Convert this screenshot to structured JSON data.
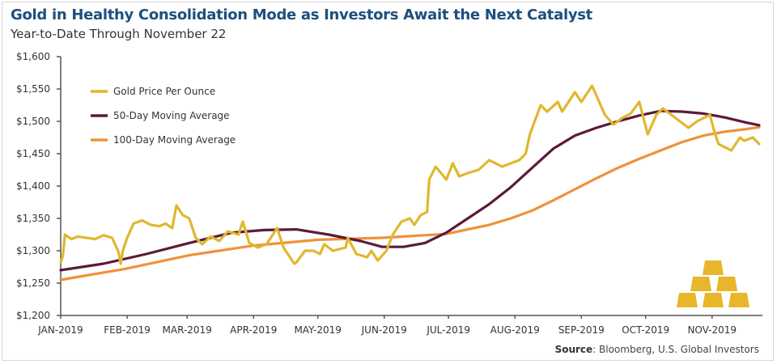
{
  "chart_data": {
    "type": "line",
    "title": "Gold in Healthy Consolidation Mode as Investors Await the Next Catalyst",
    "subtitle": "Year-to-Date Through November 22",
    "xlabel": "",
    "ylabel": "",
    "ylim": [
      1200,
      1600
    ],
    "yticks": [
      1200,
      1250,
      1300,
      1350,
      1400,
      1450,
      1500,
      1550,
      1600
    ],
    "ytick_labels": [
      "$1,200",
      "$1,250",
      "$1,300",
      "$1,350",
      "$1,400",
      "$1,450",
      "$1,500",
      "$1,550",
      "$1,600"
    ],
    "xlim_days": [
      0,
      326
    ],
    "xticks_days": [
      0,
      31,
      59,
      90,
      120,
      151,
      181,
      212,
      243,
      273,
      304
    ],
    "xtick_labels": [
      "JAN-2019",
      "FEB-2019",
      "MAR-2019",
      "APR-2019",
      "MAY-2019",
      "JUN-2019",
      "JUL-2019",
      "AUG-2019",
      "SEP-2019",
      "OCT-2019",
      "NOV-2019"
    ],
    "grid": false,
    "legend_position": "top-left",
    "series": [
      {
        "name": "Gold Price Per Ounce",
        "color": "#e0b72e",
        "x_days": [
          0,
          1,
          2,
          5,
          8,
          12,
          16,
          20,
          24,
          27,
          28,
          29,
          31,
          34,
          38,
          42,
          46,
          49,
          52,
          54,
          57,
          60,
          63,
          66,
          70,
          74,
          78,
          83,
          85,
          88,
          92,
          96,
          99,
          101,
          104,
          109,
          110,
          114,
          118,
          121,
          123,
          127,
          133,
          134,
          138,
          143,
          145,
          148,
          152,
          155,
          159,
          163,
          165,
          168,
          171,
          172,
          175,
          180,
          183,
          186,
          190,
          195,
          200,
          206,
          210,
          214,
          217,
          219,
          224,
          227,
          232,
          234,
          240,
          243,
          248,
          254,
          258,
          262,
          266,
          270,
          274,
          278,
          281,
          289,
          293,
          297,
          303,
          305,
          307,
          313,
          317,
          319,
          323,
          326
        ],
        "values": [
          1282,
          1292,
          1325,
          1318,
          1322,
          1320,
          1318,
          1324,
          1320,
          1298,
          1280,
          1300,
          1320,
          1342,
          1347,
          1340,
          1338,
          1342,
          1335,
          1370,
          1355,
          1350,
          1320,
          1310,
          1322,
          1315,
          1330,
          1325,
          1345,
          1312,
          1305,
          1310,
          1325,
          1335,
          1305,
          1280,
          1282,
          1300,
          1300,
          1295,
          1310,
          1300,
          1305,
          1320,
          1295,
          1290,
          1300,
          1285,
          1300,
          1325,
          1345,
          1350,
          1340,
          1355,
          1360,
          1410,
          1430,
          1410,
          1435,
          1415,
          1420,
          1425,
          1440,
          1430,
          1435,
          1440,
          1450,
          1480,
          1525,
          1515,
          1530,
          1515,
          1545,
          1530,
          1555,
          1510,
          1495,
          1505,
          1512,
          1530,
          1480,
          1510,
          1520,
          1500,
          1490,
          1500,
          1510,
          1485,
          1465,
          1455,
          1475,
          1470,
          1475,
          1465
        ]
      },
      {
        "name": "50-Day Moving Average",
        "color": "#5c1a3a",
        "x_days": [
          0,
          20,
          40,
          60,
          80,
          95,
          110,
          125,
          140,
          150,
          160,
          170,
          180,
          190,
          200,
          210,
          220,
          230,
          240,
          250,
          260,
          270,
          280,
          290,
          300,
          310,
          320,
          326
        ],
        "values": [
          1270,
          1280,
          1295,
          1312,
          1328,
          1332,
          1333,
          1325,
          1315,
          1306,
          1306,
          1312,
          1328,
          1350,
          1372,
          1398,
          1428,
          1458,
          1478,
          1490,
          1500,
          1509,
          1516,
          1515,
          1512,
          1506,
          1498,
          1494
        ]
      },
      {
        "name": "100-Day Moving Average",
        "color": "#f0913a",
        "x_days": [
          0,
          30,
          60,
          90,
          120,
          150,
          180,
          200,
          210,
          220,
          230,
          240,
          250,
          260,
          270,
          280,
          290,
          300,
          310,
          320,
          326
        ],
        "values": [
          1255,
          1272,
          1293,
          1308,
          1317,
          1320,
          1326,
          1340,
          1350,
          1362,
          1378,
          1395,
          1412,
          1428,
          1442,
          1455,
          1468,
          1478,
          1484,
          1488,
          1491
        ]
      }
    ]
  },
  "source": {
    "label": "Source",
    "text": ": Bloomberg, U.S. Global Investors"
  },
  "decoration": {
    "icon": "gold-bars-icon",
    "color": "#e8b62a"
  }
}
